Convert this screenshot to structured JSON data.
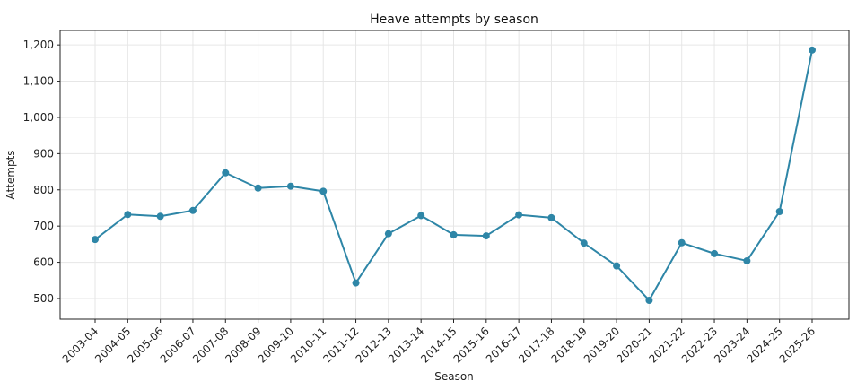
{
  "chart_data": {
    "type": "line",
    "title": "Heave attempts by season",
    "xlabel": "Season",
    "ylabel": "Attempts",
    "categories": [
      "2003-04",
      "2004-05",
      "2005-06",
      "2006-07",
      "2007-08",
      "2008-09",
      "2009-10",
      "2010-11",
      "2011-12",
      "2012-13",
      "2013-14",
      "2014-15",
      "2015-16",
      "2016-17",
      "2017-18",
      "2018-19",
      "2019-20",
      "2020-21",
      "2021-22",
      "2022-23",
      "2023-24",
      "2024-25",
      "2025-26"
    ],
    "series": [
      {
        "values": [
          663,
          732,
          727,
          743,
          847,
          805,
          810,
          796,
          543,
          679,
          729,
          676,
          673,
          731,
          723,
          653,
          590,
          495,
          654,
          624,
          604,
          740,
          1186
        ]
      }
    ],
    "ylim": [
      443,
      1240
    ],
    "yticks": [
      500,
      600,
      700,
      800,
      900,
      1000,
      1100,
      1200
    ],
    "ytick_labels": [
      "500",
      "600",
      "700",
      "800",
      "900",
      "1,000",
      "1,100",
      "1,200"
    ],
    "grid": true,
    "line_color": "#2e86a7"
  }
}
